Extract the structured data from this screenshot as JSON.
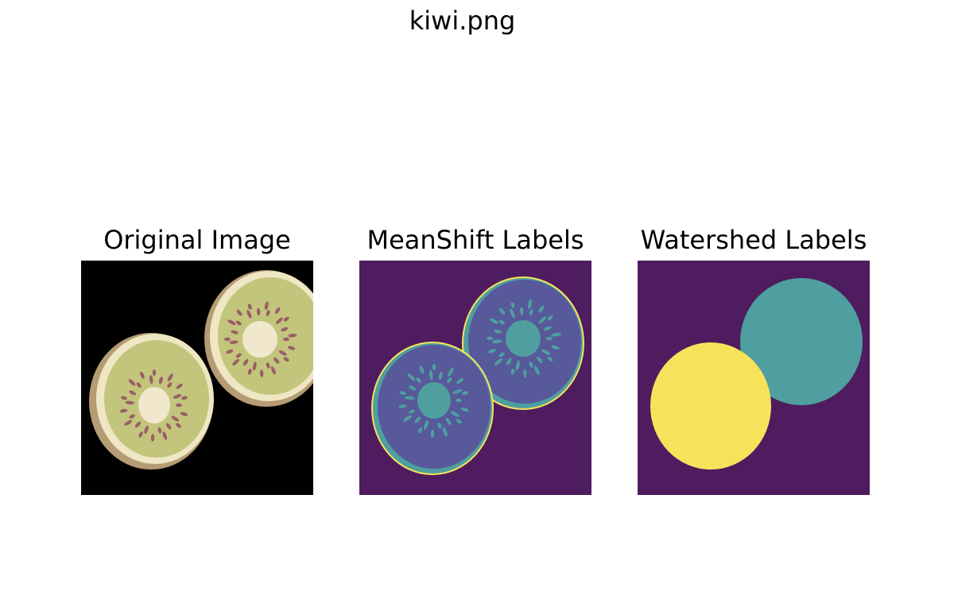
{
  "figure": {
    "title": "kiwi.png"
  },
  "panels": [
    {
      "title": "Original Image"
    },
    {
      "title": "MeanShift Labels"
    },
    {
      "title": "Watershed Labels"
    }
  ],
  "colors": {
    "background_black": "#000000",
    "kiwi_flesh": "#c3c57d",
    "kiwi_skin": "#b59c74",
    "kiwi_rim": "#efe6c3",
    "kiwi_core": "#f0e7cd",
    "kiwi_seed": "#9a5f67",
    "viridis_purple": "#4f1c5f",
    "viridis_blue": "#57599a",
    "viridis_teal": "#4f9ea0",
    "viridis_yellow": "#f7e35b"
  }
}
